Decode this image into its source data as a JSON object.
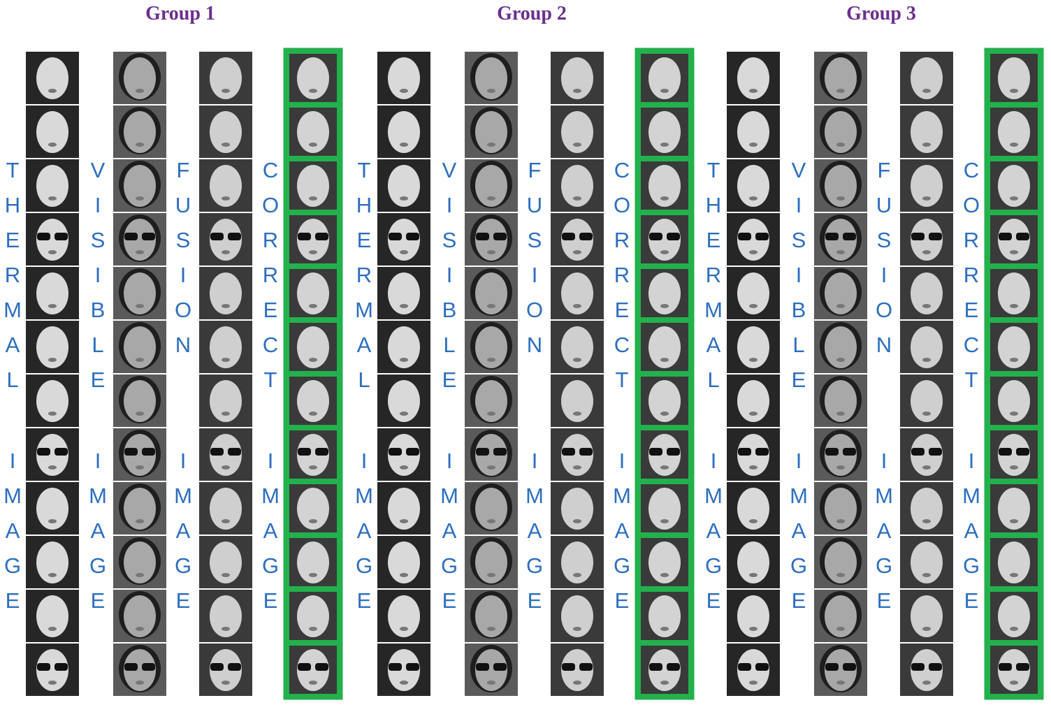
{
  "groups": [
    {
      "title": "Group 1",
      "columns": [
        {
          "top": "THERMAL",
          "bottom": "IMAGE"
        },
        {
          "top": "VISIBLE",
          "bottom": "IMAGE"
        },
        {
          "top": "FUSION",
          "bottom": "IMAGE"
        },
        {
          "top": "CORRECT",
          "bottom": "IMAGE"
        }
      ]
    },
    {
      "title": "Group 2",
      "columns": [
        {
          "top": "THERMAL",
          "bottom": "IMAGE"
        },
        {
          "top": "VISIBLE",
          "bottom": "IMAGE"
        },
        {
          "top": "FUSION",
          "bottom": "IMAGE"
        },
        {
          "top": "CORRECT",
          "bottom": "IMAGE"
        }
      ]
    },
    {
      "title": "Group 3",
      "columns": [
        {
          "top": "THERMAL",
          "bottom": "IMAGE"
        },
        {
          "top": "VISIBLE",
          "bottom": "IMAGE"
        },
        {
          "top": "FUSION",
          "bottom": "IMAGE"
        },
        {
          "top": "CORRECT",
          "bottom": "IMAGE"
        }
      ]
    }
  ]
}
